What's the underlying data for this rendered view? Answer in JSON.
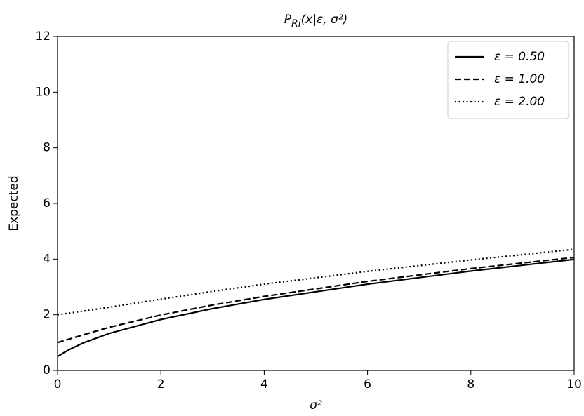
{
  "chart_data": {
    "type": "line",
    "title": {
      "main": "P",
      "sub": "Ri",
      "rest": "(x|ε, σ²)"
    },
    "xlabel": "σ²",
    "ylabel": "Expected",
    "xlim": [
      0,
      10
    ],
    "ylim": [
      0,
      12
    ],
    "xticks": [
      0,
      2,
      4,
      6,
      8,
      10
    ],
    "yticks": [
      0,
      2,
      4,
      6,
      8,
      10,
      12
    ],
    "legend": "upper right",
    "series": [
      {
        "name": "ε = 0.50",
        "color": "#000000",
        "dash": "solid",
        "x": [
          0,
          0.0625,
          0.125,
          0.25,
          0.5,
          1,
          2,
          3,
          4,
          6,
          8,
          10
        ],
        "values": [
          0.5,
          0.57,
          0.64,
          0.77,
          0.99,
          1.33,
          1.83,
          2.22,
          2.55,
          3.1,
          3.57,
          3.99
        ]
      },
      {
        "name": "ε = 1.00",
        "color": "#000000",
        "dash": "dashed",
        "x": [
          0,
          0.25,
          0.5,
          1,
          2,
          3,
          4,
          6,
          8,
          10
        ],
        "values": [
          1.0,
          1.14,
          1.28,
          1.55,
          1.99,
          2.35,
          2.66,
          3.2,
          3.66,
          4.06
        ]
      },
      {
        "name": "ε = 2.00",
        "color": "#000000",
        "dash": "dotted",
        "x": [
          0,
          0.5,
          1,
          2,
          3,
          4,
          6,
          8,
          10
        ],
        "values": [
          2.0,
          2.13,
          2.27,
          2.56,
          2.84,
          3.1,
          3.56,
          3.97,
          4.35
        ]
      }
    ]
  }
}
